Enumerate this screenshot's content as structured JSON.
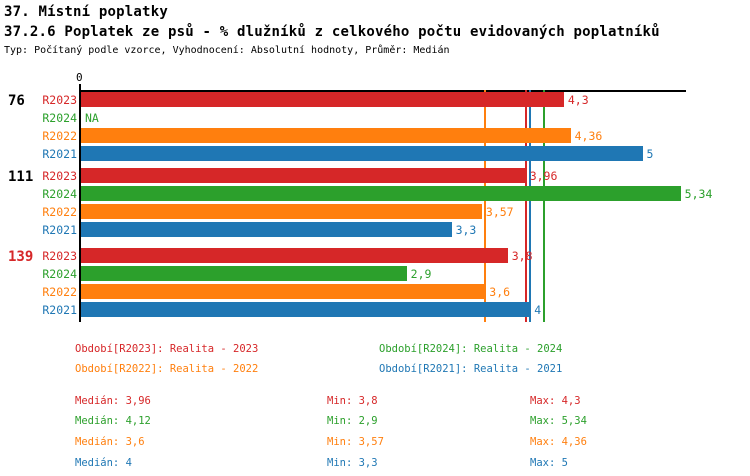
{
  "header": {
    "title": "37. Místní poplatky",
    "subtitle": "37.2.6 Poplatek ze psů - % dlužníků z celkového počtu evidovaných poplatníků",
    "meta": "Typ: Počítaný podle vzorce, Vyhodnocení: Absolutní hodnoty, Průměr: Medián"
  },
  "series_colors": {
    "R2023": "#d62728",
    "R2024": "#2ca02c",
    "R2022": "#ff7f0e",
    "R2021": "#1f77b4"
  },
  "chart_data": {
    "type": "bar",
    "orientation": "horizontal",
    "title": "37.2.6 Poplatek ze psů - % dlužníků z celkového počtu evidovaných poplatníků",
    "axis": {
      "origin_label": "0",
      "min": 0,
      "max": 5.39,
      "grid": false
    },
    "groups": [
      {
        "label": "76",
        "label_color": "#000000",
        "bars": [
          {
            "series": "R2023",
            "value": 4.3,
            "label": "4,3"
          },
          {
            "series": "R2024",
            "value": null,
            "label": "NA"
          },
          {
            "series": "R2022",
            "value": 4.36,
            "label": "4,36"
          },
          {
            "series": "R2021",
            "value": 5,
            "label": "5"
          }
        ]
      },
      {
        "label": "111",
        "label_color": "#000000",
        "bars": [
          {
            "series": "R2023",
            "value": 3.96,
            "label": "3,96"
          },
          {
            "series": "R2024",
            "value": 5.34,
            "label": "5,34"
          },
          {
            "series": "R2022",
            "value": 3.57,
            "label": "3,57"
          },
          {
            "series": "R2021",
            "value": 3.3,
            "label": "3,3"
          }
        ]
      },
      {
        "label": "139",
        "label_color": "#d62728",
        "bars": [
          {
            "series": "R2023",
            "value": 3.8,
            "label": "3,8"
          },
          {
            "series": "R2024",
            "value": 2.9,
            "label": "2,9"
          },
          {
            "series": "R2022",
            "value": 3.6,
            "label": "3,6"
          },
          {
            "series": "R2021",
            "value": 4,
            "label": "4"
          }
        ]
      }
    ],
    "median_lines": [
      {
        "series": "R2022",
        "value": 3.6
      },
      {
        "series": "R2023",
        "value": 3.96
      },
      {
        "series": "R2021",
        "value": 4
      },
      {
        "series": "R2024",
        "value": 4.12
      }
    ]
  },
  "legend": [
    {
      "series": "R2023",
      "text": "Období[R2023]: Realita - 2023"
    },
    {
      "series": "R2024",
      "text": "Období[R2024]: Realita - 2024"
    },
    {
      "series": "R2022",
      "text": "Období[R2022]: Realita - 2022"
    },
    {
      "series": "R2021",
      "text": "Období[R2021]: Realita - 2021"
    }
  ],
  "stats": [
    {
      "series": "R2023",
      "median": "Medián: 3,96",
      "min": "Min: 3,8",
      "max": "Max: 4,3"
    },
    {
      "series": "R2024",
      "median": "Medián: 4,12",
      "min": "Min: 2,9",
      "max": "Max: 5,34"
    },
    {
      "series": "R2022",
      "median": "Medián: 3,6",
      "min": "Min: 3,57",
      "max": "Max: 4,36"
    },
    {
      "series": "R2021",
      "median": "Medián: 4",
      "min": "Min: 3,3",
      "max": "Max: 5"
    }
  ]
}
